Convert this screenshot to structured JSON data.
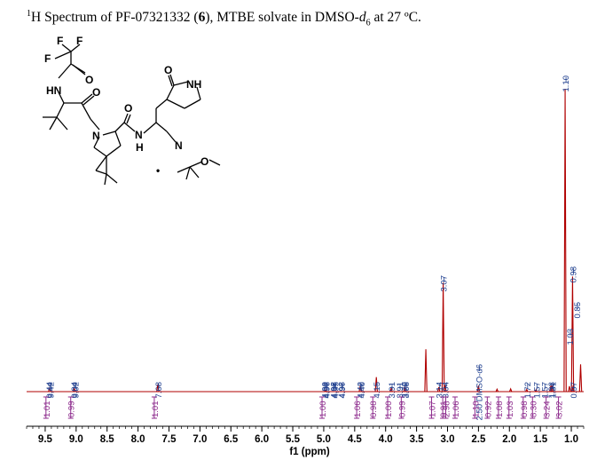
{
  "title": {
    "superscript": "1",
    "prefix": "H Spectrum of PF-07321332 (",
    "compound": "6",
    "middle": "), MTBE solvate in DMSO-",
    "subscript": "d",
    "subscript2": "6",
    "suffix": " at 27 ºC."
  },
  "structure": {
    "atoms": [
      "F",
      "F",
      "F",
      "O",
      "HN",
      "O",
      "N",
      "O",
      "N",
      "H",
      "O",
      "NH",
      "N",
      "•",
      "O"
    ]
  },
  "chart_data": {
    "type": "line",
    "title": "",
    "xlabel": "f1 (ppm)",
    "ylabel": "",
    "xlim": [
      9.8,
      0.8
    ],
    "x_reversed": true,
    "grid": false,
    "ticks": [
      "9.5",
      "9.0",
      "8.5",
      "8.0",
      "7.5",
      "7.0",
      "6.5",
      "6.0",
      "5.5",
      "5.0",
      "4.5",
      "4.0",
      "3.5",
      "3.0",
      "2.5",
      "2.0",
      "1.5",
      "1.0"
    ],
    "tick_values": [
      9.5,
      9.0,
      8.5,
      8.0,
      7.5,
      7.0,
      6.5,
      6.0,
      5.5,
      5.0,
      4.5,
      4.0,
      3.5,
      3.0,
      2.5,
      2.0,
      1.5,
      1.0
    ],
    "series": [
      {
        "peaks": [
          {
            "ppm": 9.43,
            "height": 0.012
          },
          {
            "ppm": 9.03,
            "height": 0.012
          },
          {
            "ppm": 7.68,
            "height": 0.024
          },
          {
            "ppm": 4.97,
            "height": 0.006
          },
          {
            "ppm": 4.41,
            "height": 0.018
          },
          {
            "ppm": 4.15,
            "height": 0.048
          },
          {
            "ppm": 3.91,
            "height": 0.011
          },
          {
            "ppm": 3.69,
            "height": 0.016
          },
          {
            "ppm": 3.35,
            "height": 0.14
          },
          {
            "ppm": 3.14,
            "height": 0.015
          },
          {
            "ppm": 3.07,
            "height": 0.36
          },
          {
            "ppm": 3.04,
            "height": 0.02
          },
          {
            "ppm": 2.5,
            "height": 0.02
          },
          {
            "ppm": 2.2,
            "height": 0.008
          },
          {
            "ppm": 1.98,
            "height": 0.009
          },
          {
            "ppm": 1.72,
            "height": 0.007
          },
          {
            "ppm": 1.57,
            "height": 0.006
          },
          {
            "ppm": 1.33,
            "height": 0.02
          },
          {
            "ppm": 1.31,
            "height": 0.02
          },
          {
            "ppm": 1.1,
            "height": 1.0
          },
          {
            "ppm": 1.03,
            "height": 0.018
          },
          {
            "ppm": 0.98,
            "height": 0.38
          },
          {
            "ppm": 0.97,
            "height": 0.02
          },
          {
            "ppm": 0.85,
            "height": 0.09
          }
        ]
      }
    ],
    "peak_labels": [
      {
        "text": "9.44",
        "ppm": 9.44
      },
      {
        "text": "9.42",
        "ppm": 9.42
      },
      {
        "text": "9.04",
        "ppm": 9.04
      },
      {
        "text": "9.02",
        "ppm": 9.02
      },
      {
        "text": "7.68",
        "ppm": 7.68
      },
      {
        "text": "4.99",
        "ppm": 4.99
      },
      {
        "text": "4.98",
        "ppm": 4.98
      },
      {
        "text": "4.98",
        "ppm": 4.98
      },
      {
        "text": "4.97",
        "ppm": 4.97
      },
      {
        "text": "4.97",
        "ppm": 4.97
      },
      {
        "text": "4.97",
        "ppm": 4.97
      },
      {
        "text": "4.96",
        "ppm": 4.96
      },
      {
        "text": "4.95",
        "ppm": 4.95
      },
      {
        "text": "4.42",
        "ppm": 4.42
      },
      {
        "text": "4.40",
        "ppm": 4.4
      },
      {
        "text": "4.15",
        "ppm": 4.15
      },
      {
        "text": "3.91",
        "ppm": 3.91
      },
      {
        "text": "3.91",
        "ppm": 3.91
      },
      {
        "text": "3.70",
        "ppm": 3.7
      },
      {
        "text": "3.68",
        "ppm": 3.68
      },
      {
        "text": "3.14",
        "ppm": 3.14
      },
      {
        "text": "3.07",
        "ppm": 3.07
      },
      {
        "text": "3.04",
        "ppm": 3.04
      },
      {
        "text": "2.50 DMSO-d6",
        "ppm": 2.5
      },
      {
        "text": "1.72",
        "ppm": 1.72
      },
      {
        "text": "1.57",
        "ppm": 1.57
      },
      {
        "text": "1.57",
        "ppm": 1.57
      },
      {
        "text": "1.33",
        "ppm": 1.33
      },
      {
        "text": "1.31",
        "ppm": 1.31
      },
      {
        "text": "1.10",
        "ppm": 1.1
      },
      {
        "text": "1.03",
        "ppm": 1.03
      },
      {
        "text": "0.98",
        "ppm": 0.98
      },
      {
        "text": "0.97",
        "ppm": 0.97
      },
      {
        "text": "0.85",
        "ppm": 0.85
      }
    ],
    "integrals": [
      {
        "value": "1.01",
        "ppm": 9.43
      },
      {
        "value": "0.99",
        "ppm": 9.03
      },
      {
        "value": "1.01",
        "ppm": 7.68
      },
      {
        "value": "1.00",
        "ppm": 4.97
      },
      {
        "value": "1.06",
        "ppm": 4.41
      },
      {
        "value": "0.98",
        "ppm": 4.15
      },
      {
        "value": "1.00",
        "ppm": 3.91
      },
      {
        "value": "0.99",
        "ppm": 3.69
      },
      {
        "value": "1.07",
        "ppm": 3.2
      },
      {
        "value": "2.98",
        "ppm": 3.1
      },
      {
        "value": "0.91",
        "ppm": 3.02
      },
      {
        "value": "1.06",
        "ppm": 2.95
      },
      {
        "value": "1.10",
        "ppm": 2.5
      },
      {
        "value": "0.92",
        "ppm": 2.3
      },
      {
        "value": "1.08",
        "ppm": 2.12
      },
      {
        "value": "1.03",
        "ppm": 1.95
      },
      {
        "value": "0.98",
        "ppm": 1.72
      },
      {
        "value": "8.30",
        "ppm": 1.57
      },
      {
        "value": "3.24",
        "ppm": 1.35
      },
      {
        "value": "3.02",
        "ppm": 1.15
      }
    ]
  },
  "colors": {
    "spectrum": "#b00000",
    "peak_labels": "#1f3f8f",
    "integrals": "#8c2a8c",
    "axis": "#000000"
  }
}
